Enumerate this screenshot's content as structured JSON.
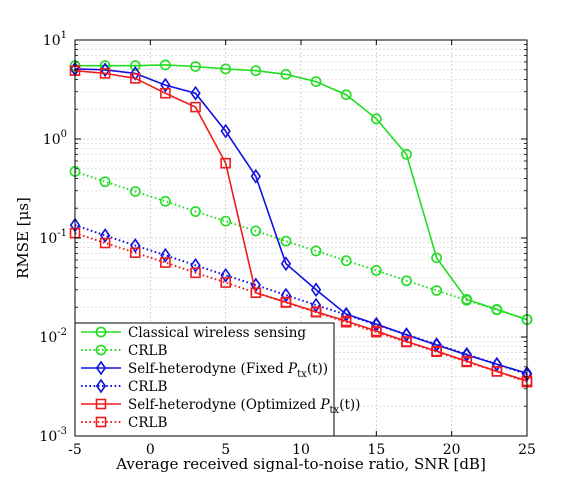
{
  "chart_data": {
    "type": "line",
    "title": "",
    "xlabel": "Average received signal-to-noise ratio, SNR [dB]",
    "ylabel": "RMSE [μs]",
    "xlim": [
      -5,
      25
    ],
    "ylim": [
      0.001,
      10
    ],
    "yscale": "log",
    "grid": true,
    "legend_position": "bottom-left",
    "x_ticks": [
      "-5",
      "0",
      "5",
      "10",
      "15",
      "20",
      "25"
    ],
    "y_ticks": [
      {
        "base": "10",
        "exp": "-3"
      },
      {
        "base": "10",
        "exp": "-2"
      },
      {
        "base": "10",
        "exp": "-1"
      },
      {
        "base": "10",
        "exp": "0"
      },
      {
        "base": "10",
        "exp": "1"
      }
    ],
    "series": [
      {
        "name": "Classical wireless sensing",
        "color": "#22dd22",
        "style": "solid",
        "marker": "circle",
        "x": [
          -5,
          -3,
          -1,
          1,
          3,
          5,
          7,
          9,
          11,
          13,
          15,
          17,
          19,
          21,
          23,
          25
        ],
        "y": [
          5.5,
          5.5,
          5.5,
          5.6,
          5.4,
          5.1,
          4.9,
          4.5,
          3.8,
          2.8,
          1.6,
          0.7,
          0.063,
          0.024,
          0.019,
          0.015
        ]
      },
      {
        "name": "CRLB",
        "color": "#22dd22",
        "style": "dotted",
        "marker": "circle",
        "x": [
          -5,
          -3,
          -1,
          1,
          3,
          5,
          7,
          9,
          11,
          13,
          15,
          17,
          19,
          21,
          23,
          25
        ],
        "y": [
          0.47,
          0.37,
          0.295,
          0.235,
          0.185,
          0.148,
          0.118,
          0.093,
          0.074,
          0.059,
          0.047,
          0.037,
          0.0295,
          0.0235,
          0.0188,
          0.015
        ]
      },
      {
        "name": "Self-heterodyne (Fixed P_tx(t))",
        "color": "#1010e0",
        "style": "solid",
        "marker": "diamond",
        "x": [
          -5,
          -3,
          -1,
          1,
          3,
          5,
          7,
          9,
          11,
          13,
          15,
          17,
          19,
          21,
          23,
          25
        ],
        "y": [
          5.1,
          5.0,
          4.6,
          3.5,
          2.9,
          1.2,
          0.42,
          0.055,
          0.03,
          0.017,
          0.0135,
          0.0105,
          0.0083,
          0.0066,
          0.0053,
          0.0043
        ]
      },
      {
        "name": "CRLB",
        "color": "#1010e0",
        "style": "dotted",
        "marker": "diamond",
        "x": [
          -5,
          -3,
          -1,
          1,
          3,
          5,
          7,
          9,
          11,
          13,
          15,
          17,
          19,
          21,
          23,
          25
        ],
        "y": [
          0.135,
          0.106,
          0.084,
          0.067,
          0.053,
          0.042,
          0.0335,
          0.0265,
          0.021,
          0.0168,
          0.0133,
          0.0106,
          0.0084,
          0.0067,
          0.0053,
          0.0042
        ]
      },
      {
        "name": "Self-heterodyne (Optimized P_tx(t))",
        "color": "#ee1c1c",
        "style": "solid",
        "marker": "square",
        "x": [
          -5,
          -3,
          -1,
          1,
          3,
          5,
          7,
          9,
          11,
          13,
          15,
          17,
          19,
          21,
          23,
          25
        ],
        "y": [
          4.9,
          4.6,
          4.1,
          2.9,
          2.1,
          0.57,
          0.028,
          0.0225,
          0.018,
          0.0145,
          0.0115,
          0.009,
          0.0072,
          0.0057,
          0.0045,
          0.0036
        ]
      },
      {
        "name": "CRLB",
        "color": "#ee1c1c",
        "style": "dotted",
        "marker": "square",
        "x": [
          -5,
          -3,
          -1,
          1,
          3,
          5,
          7,
          9,
          11,
          13,
          15,
          17,
          19,
          21,
          23,
          25
        ],
        "y": [
          0.112,
          0.089,
          0.071,
          0.0565,
          0.0445,
          0.0355,
          0.028,
          0.0223,
          0.0178,
          0.0141,
          0.0112,
          0.0089,
          0.0071,
          0.0056,
          0.0045,
          0.0035
        ]
      }
    ]
  },
  "legend": {
    "entries": [
      {
        "text": "Classical wireless sensing",
        "sym": "",
        "sub": "",
        "tail": ""
      },
      {
        "text": "CRLB",
        "sym": "",
        "sub": "",
        "tail": ""
      },
      {
        "text": "Self-heterodyne (Fixed ",
        "sym": "P",
        "sub": "tx",
        "tail": "(t))"
      },
      {
        "text": "CRLB",
        "sym": "",
        "sub": "",
        "tail": ""
      },
      {
        "text": "Self-heterodyne (Optimized ",
        "sym": "P",
        "sub": "tx",
        "tail": "(t))"
      },
      {
        "text": "CRLB",
        "sym": "",
        "sub": "",
        "tail": ""
      }
    ]
  }
}
